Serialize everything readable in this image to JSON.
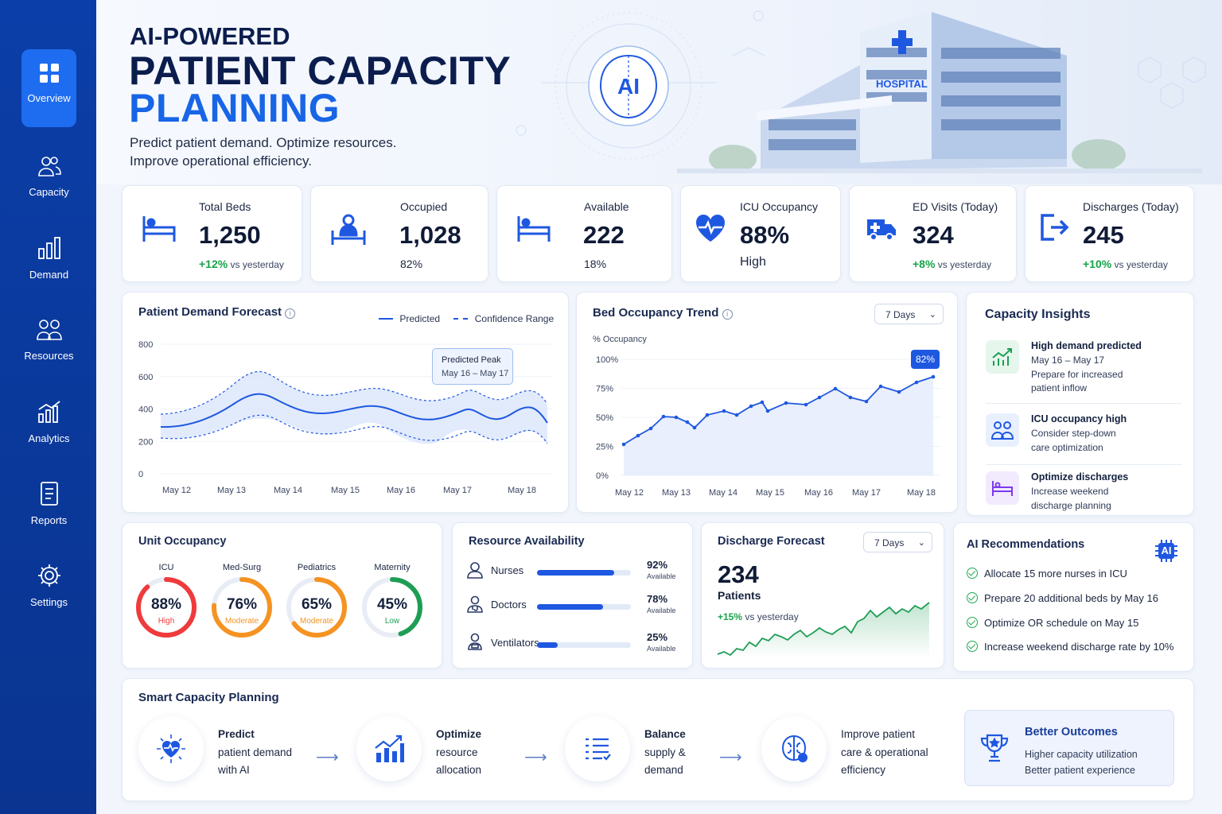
{
  "sidebar": {
    "items": [
      {
        "label": "Overview",
        "icon": "grid-icon",
        "active": true
      },
      {
        "label": "Capacity",
        "icon": "users-icon"
      },
      {
        "label": "Demand",
        "icon": "bar-chart-icon"
      },
      {
        "label": "Resources",
        "icon": "team-icon"
      },
      {
        "label": "Analytics",
        "icon": "analytics-icon"
      },
      {
        "label": "Reports",
        "icon": "document-icon"
      },
      {
        "label": "Settings",
        "icon": "gear-icon"
      }
    ]
  },
  "header": {
    "title_line1": "AI-POWERED",
    "title_line2": "PATIENT CAPACITY",
    "title_line3": "PLANNING",
    "subtitle_line1": "Predict patient demand. Optimize resources.",
    "subtitle_line2": "Improve operational efficiency.",
    "ai_badge": "AI",
    "hospital_sign": "HOSPITAL"
  },
  "kpis": [
    {
      "label": "Total Beds",
      "value": "1,250",
      "delta": "+12%",
      "delta_suffix": " vs yesterday",
      "icon": "bed-icon"
    },
    {
      "label": "Occupied",
      "value": "1,028",
      "delta": "",
      "delta_suffix": "82%",
      "icon": "patient-bed-icon"
    },
    {
      "label": "Available",
      "value": "222",
      "delta": "",
      "delta_suffix": "18%",
      "icon": "bed-icon"
    },
    {
      "label": "ICU Occupancy",
      "value": "88%",
      "delta": "",
      "delta_suffix": "High",
      "icon": "heart-pulse-icon"
    },
    {
      "label": "ED Visits (Today)",
      "value": "324",
      "delta": "+8%",
      "delta_suffix": " vs yesterday",
      "icon": "ambulance-icon"
    },
    {
      "label": "Discharges (Today)",
      "value": "245",
      "delta": "+10%",
      "delta_suffix": " vs yesterday",
      "icon": "exit-icon"
    }
  ],
  "demand_forecast": {
    "title": "Patient Demand Forecast",
    "legend_predicted": "Predicted",
    "legend_confidence": "Confidence Range",
    "tooltip_title": "Predicted Peak",
    "tooltip_range": "May 16 – May 17",
    "y_ticks": [
      "800",
      "600",
      "400",
      "200",
      "0"
    ],
    "x_ticks": [
      "May 12",
      "May 13",
      "May 14",
      "May 15",
      "May 16",
      "May 17",
      "May 18"
    ]
  },
  "occupancy_trend": {
    "title": "Bed Occupancy Trend",
    "range": "7 Days",
    "ylabel": "% Occupancy",
    "y_ticks": [
      "100%",
      "75%",
      "50%",
      "25%",
      "0%"
    ],
    "x_ticks": [
      "May 12",
      "May 13",
      "May 14",
      "May 15",
      "May 16",
      "May 17",
      "May 18"
    ],
    "last_label": "82%"
  },
  "insights": {
    "title": "Capacity Insights",
    "items": [
      {
        "title": "High demand predicted",
        "line1": "May 16 – May 17",
        "line2": "Prepare for increased",
        "line3": "patient inflow",
        "icon": "trend-up-icon",
        "color": "#1e9e55"
      },
      {
        "title": "ICU occupancy high",
        "line1": "Consider step-down",
        "line2": "care optimization",
        "line3": "",
        "icon": "team-icon",
        "color": "#1f58e0"
      },
      {
        "title": "Optimize discharges",
        "line1": "Increase weekend",
        "line2": "discharge planning",
        "line3": "",
        "icon": "bed-icon",
        "color": "#7c3aed"
      }
    ]
  },
  "unit_occupancy": {
    "title": "Unit Occupancy",
    "units": [
      {
        "name": "ICU",
        "value": "88%",
        "status": "High",
        "pct": 88,
        "color": "#ef3b3b"
      },
      {
        "name": "Med-Surg",
        "value": "76%",
        "status": "Moderate",
        "pct": 76,
        "color": "#f59322"
      },
      {
        "name": "Pediatrics",
        "value": "65%",
        "status": "Moderate",
        "pct": 65,
        "color": "#f59322"
      },
      {
        "name": "Maternity",
        "value": "45%",
        "status": "Low",
        "pct": 45,
        "color": "#1e9e55"
      }
    ]
  },
  "resources": {
    "title": "Resource Availability",
    "available_label": "Available",
    "items": [
      {
        "label": "Nurses",
        "value": "92%",
        "fill": 0.82,
        "icon": "nurse-icon"
      },
      {
        "label": "Doctors",
        "value": "78%",
        "fill": 0.7,
        "icon": "doctor-icon"
      },
      {
        "label": "Ventilators",
        "value": "25%",
        "fill": 0.22,
        "icon": "ventilator-icon"
      }
    ]
  },
  "discharge_forecast": {
    "title": "Discharge Forecast",
    "range": "7 Days",
    "value": "234",
    "unit": "Patients",
    "delta": "+15%",
    "delta_suffix": " vs yesterday"
  },
  "ai_recommendations": {
    "title": "AI Recommendations",
    "chip": "AI",
    "items": [
      "Allocate 15 more nurses in ICU",
      "Prepare 20 additional beds by May 16",
      "Optimize OR schedule on May 15",
      "Increase weekend discharge rate by 10%"
    ]
  },
  "smart_planning": {
    "title": "Smart Capacity Planning",
    "steps": [
      {
        "bold": "Predict",
        "line2": "patient demand",
        "line3": "with AI",
        "icon": "heart-pulse-icon"
      },
      {
        "bold": "Optimize",
        "line2": "resource",
        "line3": "allocation",
        "icon": "chart-growth-icon"
      },
      {
        "bold": "Balance",
        "line2": "supply &",
        "line3": "demand",
        "icon": "checklist-icon"
      },
      {
        "bold": "",
        "line1": "Improve patient",
        "line2": "care & operational",
        "line3": "efficiency",
        "icon": "brain-icon"
      }
    ],
    "outcome_title": "Better Outcomes",
    "outcome_line1": "Higher capacity utilization",
    "outcome_line2": "Better patient experience"
  },
  "colors": {
    "sidebar": "#0b3ea8",
    "accent": "#1865e6",
    "green": "#17a34a",
    "red": "#e53935"
  }
}
